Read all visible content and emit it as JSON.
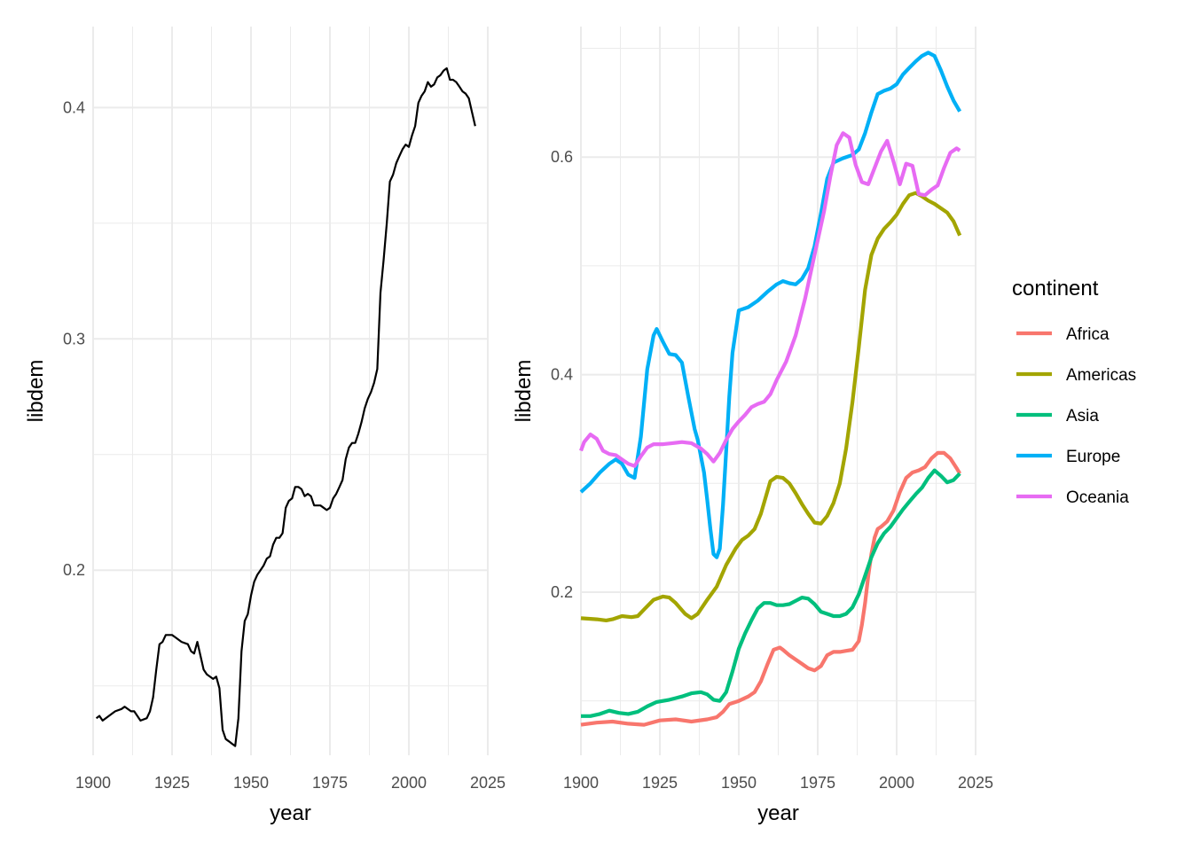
{
  "chart_data": [
    {
      "type": "line",
      "xlabel": "year",
      "ylabel": "libdem",
      "xlim": [
        1900,
        2025
      ],
      "ylim": [
        0.12,
        0.435
      ],
      "x_ticks": [
        1900,
        1925,
        1950,
        1975,
        2000,
        2025
      ],
      "y_ticks": [
        0.2,
        0.3,
        0.4
      ],
      "y_tick_labels": [
        "0.2",
        "0.3",
        "0.4"
      ],
      "grid": true,
      "series": [
        {
          "color": "#000000",
          "x": [
            1901,
            1902,
            1903,
            1905,
            1907,
            1909,
            1910,
            1912,
            1913,
            1915,
            1917,
            1918,
            1919,
            1920,
            1921,
            1922,
            1923,
            1925,
            1926,
            1928,
            1930,
            1931,
            1932,
            1933,
            1935,
            1936,
            1938,
            1939,
            1940,
            1941,
            1942,
            1943,
            1944,
            1945,
            1946,
            1947,
            1948,
            1949,
            1950,
            1951,
            1952,
            1953,
            1954,
            1955,
            1956,
            1957,
            1958,
            1959,
            1960,
            1961,
            1962,
            1963,
            1964,
            1965,
            1966,
            1967,
            1968,
            1969,
            1970,
            1971,
            1972,
            1973,
            1974,
            1975,
            1976,
            1977,
            1978,
            1979,
            1980,
            1981,
            1982,
            1983,
            1984,
            1985,
            1986,
            1987,
            1988,
            1989,
            1990,
            1991,
            1992,
            1993,
            1994,
            1995,
            1996,
            1997,
            1998,
            1999,
            2000,
            2001,
            2002,
            2003,
            2004,
            2005,
            2006,
            2007,
            2008,
            2009,
            2010,
            2011,
            2012,
            2013,
            2014,
            2015,
            2016,
            2017,
            2018,
            2019,
            2020,
            2021
          ],
          "values": [
            0.136,
            0.137,
            0.135,
            0.137,
            0.139,
            0.14,
            0.141,
            0.139,
            0.139,
            0.135,
            0.136,
            0.139,
            0.145,
            0.157,
            0.168,
            0.169,
            0.172,
            0.172,
            0.171,
            0.169,
            0.168,
            0.165,
            0.164,
            0.169,
            0.157,
            0.155,
            0.153,
            0.154,
            0.149,
            0.131,
            0.127,
            0.126,
            0.125,
            0.124,
            0.136,
            0.165,
            0.178,
            0.181,
            0.189,
            0.195,
            0.198,
            0.2,
            0.202,
            0.205,
            0.206,
            0.211,
            0.214,
            0.214,
            0.216,
            0.227,
            0.23,
            0.231,
            0.236,
            0.236,
            0.235,
            0.232,
            0.233,
            0.232,
            0.228,
            0.228,
            0.228,
            0.227,
            0.226,
            0.227,
            0.231,
            0.233,
            0.236,
            0.239,
            0.248,
            0.253,
            0.255,
            0.255,
            0.259,
            0.264,
            0.27,
            0.274,
            0.277,
            0.281,
            0.287,
            0.32,
            0.334,
            0.35,
            0.368,
            0.371,
            0.376,
            0.379,
            0.382,
            0.384,
            0.383,
            0.388,
            0.392,
            0.402,
            0.405,
            0.407,
            0.411,
            0.409,
            0.41,
            0.413,
            0.414,
            0.416,
            0.417,
            0.412,
            0.412,
            0.411,
            0.409,
            0.407,
            0.406,
            0.404,
            0.398,
            0.392
          ]
        }
      ]
    },
    {
      "type": "line",
      "xlabel": "year",
      "ylabel": "libdem",
      "xlim": [
        1900,
        2025
      ],
      "ylim": [
        0.05,
        0.72
      ],
      "x_ticks": [
        1900,
        1925,
        1950,
        1975,
        2000,
        2025
      ],
      "y_ticks": [
        0.2,
        0.4,
        0.6
      ],
      "y_tick_labels": [
        "0.2",
        "0.4",
        "0.6"
      ],
      "grid": true,
      "legend": {
        "title": "continent",
        "placement": "right"
      },
      "series": [
        {
          "name": "Africa",
          "color": "#F8766D",
          "x": [
            1900,
            1905,
            1910,
            1915,
            1920,
            1925,
            1930,
            1935,
            1940,
            1943,
            1945,
            1947,
            1950,
            1953,
            1955,
            1957,
            1959,
            1961,
            1963,
            1964,
            1966,
            1968,
            1970,
            1972,
            1974,
            1976,
            1978,
            1980,
            1982,
            1984,
            1986,
            1988,
            1989,
            1990,
            1991,
            1992,
            1993,
            1994,
            1995,
            1997,
            1999,
            2001,
            2003,
            2005,
            2007,
            2009,
            2011,
            2013,
            2015,
            2017,
            2019,
            2020
          ],
          "values": [
            0.078,
            0.08,
            0.081,
            0.079,
            0.078,
            0.082,
            0.083,
            0.081,
            0.083,
            0.085,
            0.09,
            0.097,
            0.1,
            0.104,
            0.108,
            0.118,
            0.133,
            0.147,
            0.149,
            0.147,
            0.142,
            0.138,
            0.134,
            0.13,
            0.128,
            0.132,
            0.142,
            0.145,
            0.145,
            0.146,
            0.147,
            0.155,
            0.17,
            0.19,
            0.215,
            0.235,
            0.25,
            0.258,
            0.26,
            0.265,
            0.275,
            0.292,
            0.305,
            0.31,
            0.312,
            0.315,
            0.323,
            0.328,
            0.328,
            0.323,
            0.314,
            0.309
          ]
        },
        {
          "name": "Americas",
          "color": "#A3A500",
          "x": [
            1900,
            1905,
            1908,
            1910,
            1913,
            1916,
            1918,
            1920,
            1923,
            1926,
            1928,
            1930,
            1933,
            1935,
            1937,
            1940,
            1943,
            1946,
            1949,
            1951,
            1953,
            1955,
            1957,
            1960,
            1962,
            1964,
            1966,
            1968,
            1970,
            1972,
            1974,
            1976,
            1978,
            1980,
            1982,
            1984,
            1986,
            1988,
            1990,
            1992,
            1994,
            1996,
            1998,
            2000,
            2002,
            2004,
            2006,
            2008,
            2010,
            2012,
            2014,
            2016,
            2018,
            2020
          ],
          "values": [
            0.176,
            0.175,
            0.174,
            0.175,
            0.178,
            0.177,
            0.178,
            0.184,
            0.193,
            0.196,
            0.195,
            0.19,
            0.18,
            0.176,
            0.18,
            0.193,
            0.205,
            0.225,
            0.24,
            0.248,
            0.252,
            0.258,
            0.272,
            0.302,
            0.306,
            0.305,
            0.3,
            0.291,
            0.281,
            0.272,
            0.264,
            0.263,
            0.27,
            0.282,
            0.3,
            0.332,
            0.375,
            0.425,
            0.478,
            0.51,
            0.525,
            0.534,
            0.54,
            0.547,
            0.557,
            0.565,
            0.567,
            0.564,
            0.56,
            0.557,
            0.553,
            0.549,
            0.541,
            0.528
          ]
        },
        {
          "name": "Asia",
          "color": "#00BF7D",
          "x": [
            1900,
            1903,
            1906,
            1909,
            1912,
            1915,
            1918,
            1921,
            1924,
            1928,
            1932,
            1935,
            1938,
            1940,
            1942,
            1944,
            1946,
            1948,
            1950,
            1952,
            1954,
            1956,
            1958,
            1960,
            1962,
            1964,
            1966,
            1968,
            1970,
            1972,
            1974,
            1976,
            1978,
            1980,
            1982,
            1984,
            1986,
            1988,
            1990,
            1992,
            1994,
            1996,
            1998,
            2000,
            2002,
            2004,
            2006,
            2008,
            2010,
            2012,
            2014,
            2016,
            2018,
            2020
          ],
          "values": [
            0.086,
            0.086,
            0.088,
            0.091,
            0.089,
            0.088,
            0.09,
            0.095,
            0.099,
            0.101,
            0.104,
            0.107,
            0.108,
            0.106,
            0.101,
            0.1,
            0.108,
            0.127,
            0.148,
            0.162,
            0.174,
            0.185,
            0.19,
            0.19,
            0.188,
            0.188,
            0.189,
            0.192,
            0.195,
            0.194,
            0.189,
            0.182,
            0.18,
            0.178,
            0.178,
            0.18,
            0.186,
            0.198,
            0.215,
            0.232,
            0.245,
            0.254,
            0.26,
            0.268,
            0.276,
            0.283,
            0.29,
            0.296,
            0.305,
            0.312,
            0.307,
            0.301,
            0.303,
            0.309
          ]
        },
        {
          "name": "Europe",
          "color": "#00B0F6",
          "x": [
            1900,
            1903,
            1906,
            1909,
            1911,
            1913,
            1915,
            1917,
            1919,
            1921,
            1923,
            1924,
            1926,
            1928,
            1930,
            1932,
            1934,
            1936,
            1937,
            1939,
            1940,
            1941,
            1942,
            1943,
            1944,
            1945,
            1946,
            1947,
            1948,
            1950,
            1953,
            1956,
            1959,
            1962,
            1964,
            1966,
            1968,
            1970,
            1972,
            1974,
            1976,
            1978,
            1980,
            1983,
            1986,
            1988,
            1990,
            1992,
            1994,
            1996,
            1998,
            2000,
            2002,
            2004,
            2006,
            2008,
            2010,
            2012,
            2014,
            2016,
            2018,
            2020
          ],
          "values": [
            0.292,
            0.3,
            0.31,
            0.318,
            0.322,
            0.318,
            0.308,
            0.305,
            0.343,
            0.405,
            0.436,
            0.442,
            0.43,
            0.419,
            0.418,
            0.411,
            0.38,
            0.35,
            0.34,
            0.31,
            0.285,
            0.258,
            0.235,
            0.232,
            0.24,
            0.28,
            0.33,
            0.38,
            0.42,
            0.459,
            0.462,
            0.468,
            0.476,
            0.483,
            0.486,
            0.484,
            0.483,
            0.488,
            0.498,
            0.518,
            0.548,
            0.58,
            0.595,
            0.599,
            0.602,
            0.607,
            0.622,
            0.641,
            0.658,
            0.661,
            0.663,
            0.667,
            0.676,
            0.682,
            0.688,
            0.693,
            0.696,
            0.693,
            0.68,
            0.665,
            0.652,
            0.642
          ]
        },
        {
          "name": "Oceania",
          "color": "#E76BF3",
          "x": [
            1900,
            1901,
            1903,
            1905,
            1907,
            1909,
            1911,
            1913,
            1915,
            1917,
            1919,
            1921,
            1923,
            1926,
            1929,
            1932,
            1935,
            1938,
            1940,
            1942,
            1944,
            1946,
            1948,
            1950,
            1952,
            1954,
            1956,
            1958,
            1960,
            1962,
            1965,
            1968,
            1971,
            1974,
            1977,
            1979,
            1981,
            1983,
            1985,
            1987,
            1989,
            1991,
            1993,
            1995,
            1997,
            1999,
            2001,
            2003,
            2005,
            2007,
            2009,
            2011,
            2013,
            2015,
            2017,
            2019,
            2020
          ],
          "values": [
            0.33,
            0.338,
            0.345,
            0.341,
            0.33,
            0.327,
            0.326,
            0.322,
            0.318,
            0.316,
            0.325,
            0.333,
            0.336,
            0.336,
            0.337,
            0.338,
            0.337,
            0.332,
            0.327,
            0.32,
            0.328,
            0.34,
            0.35,
            0.357,
            0.363,
            0.37,
            0.373,
            0.375,
            0.382,
            0.395,
            0.412,
            0.436,
            0.47,
            0.51,
            0.55,
            0.582,
            0.611,
            0.622,
            0.618,
            0.593,
            0.577,
            0.575,
            0.59,
            0.605,
            0.615,
            0.596,
            0.575,
            0.594,
            0.592,
            0.566,
            0.565,
            0.57,
            0.574,
            0.59,
            0.604,
            0.608,
            0.606
          ]
        }
      ]
    }
  ]
}
